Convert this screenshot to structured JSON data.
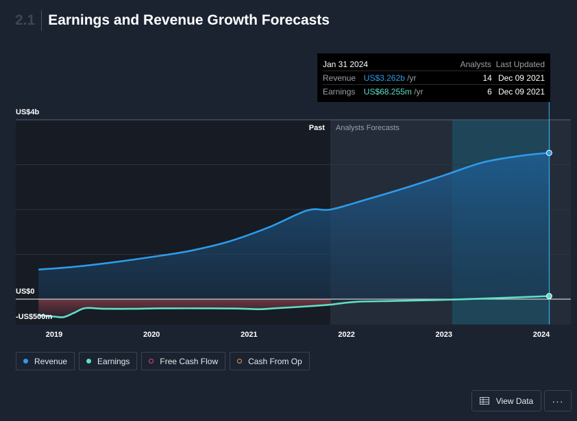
{
  "header": {
    "section_number": "2.1",
    "title": "Earnings and Revenue Growth Forecasts"
  },
  "chart_data": {
    "type": "area",
    "x_tick_labels": [
      "2019",
      "2020",
      "2021",
      "2022",
      "2023",
      "2024"
    ],
    "y_axis_labels": {
      "top": "US$4b",
      "zero": "US$0",
      "bottom": "-US$500m"
    },
    "ylim": [
      -500,
      4000
    ],
    "y_unit": "US$ millions",
    "regions": {
      "past_label": "Past",
      "forecast_label": "Analysts Forecasts",
      "past_end": 2021.84
    },
    "series": [
      {
        "name": "Revenue",
        "color": "#2f9bea",
        "x": [
          2018.84,
          2019.2,
          2019.6,
          2020.0,
          2020.4,
          2020.8,
          2021.2,
          2021.6,
          2021.84,
          2022.2,
          2022.6,
          2023.0,
          2023.4,
          2023.8,
          2024.08
        ],
        "y": [
          660,
          720,
          820,
          940,
          1080,
          1290,
          1600,
          1980,
          2000,
          2220,
          2480,
          2760,
          3050,
          3370,
          3262
        ]
      },
      {
        "name": "Earnings",
        "color": "#5fe0c6",
        "x": [
          2018.84,
          2019.0,
          2019.1,
          2019.2,
          2019.32,
          2019.5,
          2019.8,
          2020.1,
          2020.5,
          2020.9,
          2021.1,
          2021.3,
          2021.6,
          2021.84,
          2022.1,
          2022.5,
          2023.0,
          2023.5,
          2024.08
        ],
        "y": [
          -360,
          -390,
          -400,
          -310,
          -200,
          -215,
          -215,
          -205,
          -205,
          -210,
          -225,
          -200,
          -160,
          -120,
          -60,
          -40,
          -15,
          20,
          68.255
        ]
      }
    ]
  },
  "tooltip": {
    "date": "Jan 31 2024",
    "col_analysts": "Analysts",
    "col_last_updated": "Last Updated",
    "rows": [
      {
        "label": "Revenue",
        "value": "US$3.262b",
        "unit": "/yr",
        "analysts": "14",
        "updated": "Dec 09 2021"
      },
      {
        "label": "Earnings",
        "value": "US$68.255m",
        "unit": "/yr",
        "analysts": "6",
        "updated": "Dec 09 2021"
      }
    ]
  },
  "legend": [
    {
      "label": "Revenue",
      "color": "#2f9bea",
      "filled": true
    },
    {
      "label": "Earnings",
      "color": "#5fe0c6",
      "filled": true
    },
    {
      "label": "Free Cash Flow",
      "color": "#e0497a",
      "filled": false
    },
    {
      "label": "Cash From Op",
      "color": "#e8a33a",
      "filled": false
    }
  ],
  "buttons": {
    "view_data": "View Data",
    "more": "···"
  }
}
